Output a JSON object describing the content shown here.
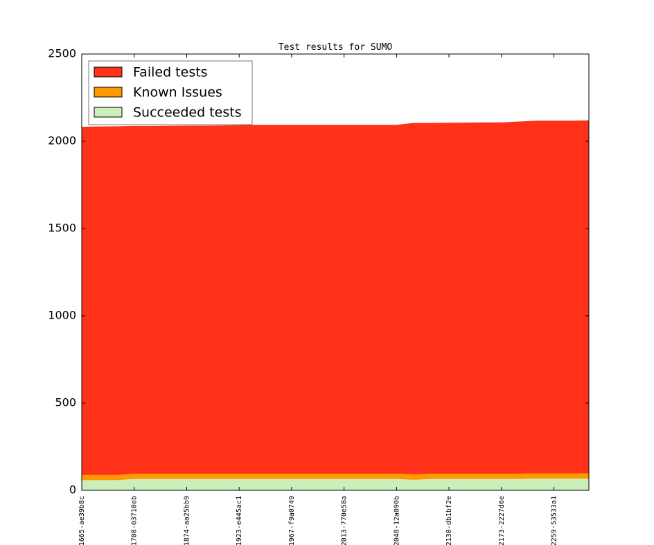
{
  "chart_data": {
    "type": "stacked_area",
    "title": "Test results for SUMO",
    "categories": [
      "1665-ae39b8c",
      null,
      null,
      "1708-03710eb",
      null,
      null,
      "1874-aa25bb9",
      null,
      null,
      "1923-e445ac1",
      null,
      null,
      "1967-f9a0749",
      null,
      null,
      "2013-770e58a",
      null,
      null,
      "2048-12a090b",
      null,
      null,
      "2130-db1bf2e",
      null,
      null,
      "2173-2227d6e",
      null,
      null,
      "2259-53533a1",
      null,
      null
    ],
    "series": [
      {
        "name": "Failed tests",
        "color": "#ff3219",
        "values": [
          1995,
          1997,
          1998,
          1993,
          1993,
          1994,
          1995,
          1995,
          1996,
          1998,
          1999,
          1999,
          1999,
          1999,
          1999,
          1999,
          1999,
          1999,
          1999,
          2013,
          2010,
          2011,
          2012,
          2013,
          2013,
          2018,
          2021,
          2021,
          2021,
          2023
        ]
      },
      {
        "name": "Known Issues",
        "color": "#ff9900",
        "values": [
          30,
          30,
          30,
          30,
          30,
          30,
          30,
          30,
          30,
          30,
          30,
          30,
          30,
          30,
          30,
          30,
          30,
          30,
          30,
          32,
          30,
          30,
          30,
          30,
          30,
          30,
          30,
          30,
          30,
          30
        ]
      },
      {
        "name": "Succeeded tests",
        "color": "#cceebb",
        "values": [
          58,
          58,
          58,
          65,
          65,
          65,
          65,
          65,
          65,
          65,
          65,
          65,
          65,
          65,
          65,
          65,
          65,
          65,
          65,
          60,
          65,
          65,
          65,
          65,
          65,
          65,
          67,
          67,
          67,
          67
        ]
      }
    ],
    "ylim": [
      0,
      2500
    ],
    "yticks": [
      0,
      500,
      1000,
      1500,
      2000,
      2500
    ],
    "legend": "upper left"
  }
}
